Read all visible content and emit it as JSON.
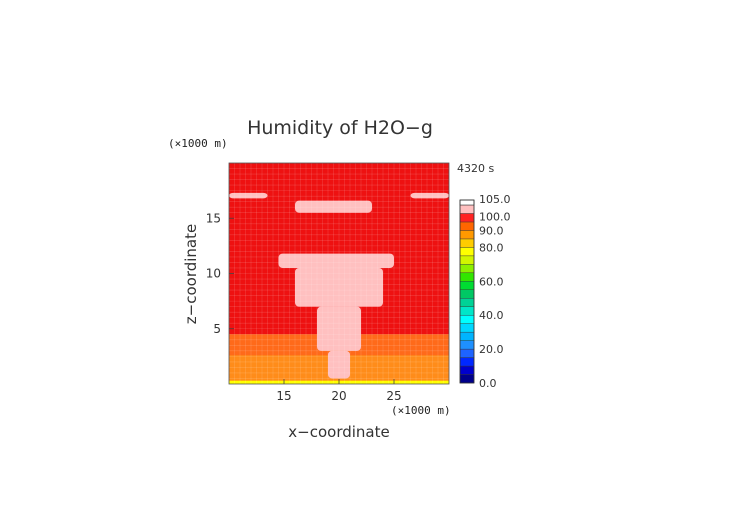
{
  "chart_data": {
    "type": "heatmap",
    "title": "Humidity of H2O−g",
    "timestamp": "4320 s",
    "xlabel": "x−coordinate",
    "ylabel": "z−coordinate",
    "x_unit": "(×1000 m)",
    "y_unit": "(×1000 m)",
    "xlim": [
      10,
      30
    ],
    "ylim": [
      0,
      20
    ],
    "x_ticks": [
      15,
      20,
      25
    ],
    "y_ticks": [
      5,
      10,
      15
    ],
    "colorbar": {
      "ticks": [
        "0.0",
        "20.0",
        "40.0",
        "60.0",
        "80.0",
        "90.0",
        "100.0",
        "105.0"
      ],
      "levels": [
        {
          "from": 0,
          "to": 5,
          "color": "#00008b"
        },
        {
          "from": 5,
          "to": 10,
          "color": "#0000cd"
        },
        {
          "from": 10,
          "to": 15,
          "color": "#0028ff"
        },
        {
          "from": 15,
          "to": 20,
          "color": "#1e64ff"
        },
        {
          "from": 20,
          "to": 25,
          "color": "#1e90ff"
        },
        {
          "from": 25,
          "to": 30,
          "color": "#00b4ff"
        },
        {
          "from": 30,
          "to": 35,
          "color": "#00d7ff"
        },
        {
          "from": 35,
          "to": 40,
          "color": "#00ffff"
        },
        {
          "from": 40,
          "to": 45,
          "color": "#00e6c8"
        },
        {
          "from": 45,
          "to": 50,
          "color": "#00d296"
        },
        {
          "from": 50,
          "to": 55,
          "color": "#00c864"
        },
        {
          "from": 55,
          "to": 60,
          "color": "#00dc32"
        },
        {
          "from": 60,
          "to": 65,
          "color": "#32e600"
        },
        {
          "from": 65,
          "to": 70,
          "color": "#8cf000"
        },
        {
          "from": 70,
          "to": 75,
          "color": "#d2f500"
        },
        {
          "from": 75,
          "to": 80,
          "color": "#ffff00"
        },
        {
          "from": 80,
          "to": 85,
          "color": "#ffcc00"
        },
        {
          "from": 85,
          "to": 90,
          "color": "#ff9900"
        },
        {
          "from": 90,
          "to": 95,
          "color": "#ff6600"
        },
        {
          "from": 95,
          "to": 100,
          "color": "#ff2222"
        },
        {
          "from": 100,
          "to": 105,
          "color": "#ffc0c0"
        }
      ]
    },
    "fields": {
      "background": {
        "value": 97,
        "color": "#ee1111"
      },
      "lower_layer": {
        "value": 92,
        "color": "#ff6a1a"
      },
      "mid_layer": {
        "value": 87,
        "color": "#ff8c1a"
      },
      "surface_layer": {
        "value": 77,
        "color": "#ffff00"
      },
      "saturated": {
        "value": 102,
        "color": "#ffc0c0"
      },
      "core": {
        "value": 97,
        "color": "#dd0000"
      }
    },
    "regions": [
      {
        "field": "lower_layer",
        "x": [
          10,
          30
        ],
        "y": [
          0,
          4.5
        ]
      },
      {
        "field": "mid_layer",
        "x": [
          10,
          30
        ],
        "y": [
          0.3,
          2.6
        ]
      },
      {
        "field": "surface_layer",
        "x": [
          10,
          30
        ],
        "y": [
          0,
          0.3
        ]
      },
      {
        "field": "saturated",
        "x": [
          10,
          13.5
        ],
        "y": [
          16.8,
          17.3
        ]
      },
      {
        "field": "saturated",
        "x": [
          16,
          23
        ],
        "y": [
          15.5,
          16.6
        ]
      },
      {
        "field": "saturated",
        "x": [
          26.5,
          30
        ],
        "y": [
          16.8,
          17.3
        ]
      },
      {
        "field": "saturated",
        "x": [
          14.5,
          25
        ],
        "y": [
          10.5,
          11.8
        ]
      },
      {
        "field": "saturated",
        "x": [
          16,
          24
        ],
        "y": [
          7,
          10.5
        ]
      },
      {
        "field": "saturated",
        "x": [
          18,
          22
        ],
        "y": [
          3,
          7
        ]
      },
      {
        "field": "saturated",
        "x": [
          19,
          21
        ],
        "y": [
          0.5,
          3
        ]
      }
    ]
  }
}
